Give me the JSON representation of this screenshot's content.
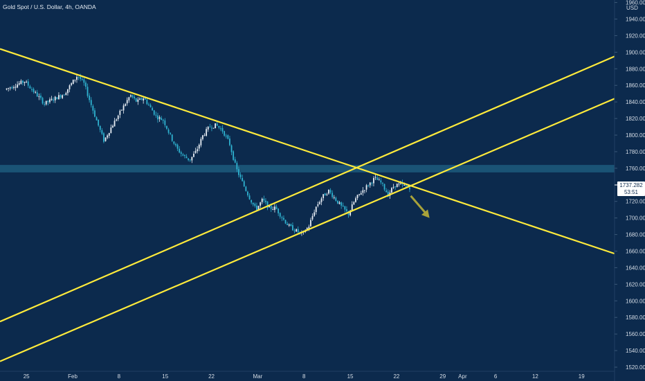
{
  "header": {
    "title": "Gold Spot / U.S. Dollar, 4h, OANDA",
    "currency": "USD"
  },
  "price_label": {
    "price": "1737.282",
    "countdown": "53:51"
  },
  "colors": {
    "background": "#0c2a4d",
    "trendline": "#ffeb3b",
    "zone": "#1d5a7c",
    "candle_up": "#e8eef5",
    "candle_down": "#2fb3d1",
    "arrow": "#a8a23a",
    "axis_text": "#d6dde6",
    "price_label_bg": "#ffffff",
    "price_label_text": "#0c2a4d"
  },
  "chart_data": {
    "type": "candlestick",
    "symbol": "Gold Spot / U.S. Dollar",
    "timeframe": "4h",
    "broker": "OANDA",
    "ylim": [
      1515,
      1963
    ],
    "x_ticks": [
      "25",
      "Feb",
      "8",
      "15",
      "22",
      "Mar",
      "8",
      "15",
      "22",
      "29",
      "Apr",
      "6",
      "12",
      "19"
    ],
    "y_ticks": [
      "1960.000",
      "1940.000",
      "1920.000",
      "1900.000",
      "1880.000",
      "1860.000",
      "1840.000",
      "1820.000",
      "1800.000",
      "1780.000",
      "1760.000",
      "1740.000",
      "1720.000",
      "1700.000",
      "1680.000",
      "1660.000",
      "1640.000",
      "1620.000",
      "1600.000",
      "1580.000",
      "1560.000",
      "1540.000",
      "1520.000"
    ],
    "price_path": [
      {
        "date": "Jan 22",
        "price": 1855
      },
      {
        "date": "Jan 25",
        "price": 1865
      },
      {
        "date": "Jan 28",
        "price": 1838
      },
      {
        "date": "Jan 31",
        "price": 1850
      },
      {
        "date": "Feb 2",
        "price": 1872
      },
      {
        "date": "Feb 3",
        "price": 1862
      },
      {
        "date": "Feb 4",
        "price": 1838
      },
      {
        "date": "Feb 5",
        "price": 1815
      },
      {
        "date": "Feb 6",
        "price": 1793
      },
      {
        "date": "Feb 7",
        "price": 1808
      },
      {
        "date": "Feb 9",
        "price": 1835
      },
      {
        "date": "Feb 10",
        "price": 1848
      },
      {
        "date": "Feb 11",
        "price": 1840
      },
      {
        "date": "Feb 12",
        "price": 1845
      },
      {
        "date": "Feb 14",
        "price": 1822
      },
      {
        "date": "Feb 15",
        "price": 1818
      },
      {
        "date": "Feb 16",
        "price": 1800
      },
      {
        "date": "Feb 17",
        "price": 1784
      },
      {
        "date": "Feb 18",
        "price": 1775
      },
      {
        "date": "Feb 19",
        "price": 1770
      },
      {
        "date": "Feb 20",
        "price": 1781
      },
      {
        "date": "Feb 21",
        "price": 1800
      },
      {
        "date": "Feb 22",
        "price": 1810
      },
      {
        "date": "Feb 23",
        "price": 1812
      },
      {
        "date": "Feb 24",
        "price": 1805
      },
      {
        "date": "Feb 25",
        "price": 1790
      },
      {
        "date": "Feb 26",
        "price": 1760
      },
      {
        "date": "Feb 27",
        "price": 1742
      },
      {
        "date": "Feb 28",
        "price": 1725
      },
      {
        "date": "Mar 1",
        "price": 1710
      },
      {
        "date": "Mar 2",
        "price": 1722
      },
      {
        "date": "Mar 3",
        "price": 1712
      },
      {
        "date": "Mar 4",
        "price": 1712
      },
      {
        "date": "Mar 5",
        "price": 1700
      },
      {
        "date": "Mar 6",
        "price": 1690
      },
      {
        "date": "Mar 7",
        "price": 1685
      },
      {
        "date": "Mar 8",
        "price": 1680
      },
      {
        "date": "Mar 9",
        "price": 1690
      },
      {
        "date": "Mar 10",
        "price": 1712
      },
      {
        "date": "Mar 11",
        "price": 1725
      },
      {
        "date": "Mar 12",
        "price": 1733
      },
      {
        "date": "Mar 14",
        "price": 1713
      },
      {
        "date": "Mar 15",
        "price": 1705
      },
      {
        "date": "Mar 16",
        "price": 1722
      },
      {
        "date": "Mar 17",
        "price": 1732
      },
      {
        "date": "Mar 18",
        "price": 1740
      },
      {
        "date": "Mar 19",
        "price": 1748
      },
      {
        "date": "Mar 20",
        "price": 1742
      },
      {
        "date": "Mar 21",
        "price": 1728
      },
      {
        "date": "Mar 22",
        "price": 1740
      },
      {
        "date": "Mar 23",
        "price": 1740
      },
      {
        "date": "Mar 24",
        "price": 1737
      }
    ],
    "horizontal_zone": [
      1755,
      1764
    ],
    "annotations": [
      {
        "type": "trendline",
        "name": "descending-resistance",
        "p1": {
          "date": "Jan 21",
          "price": 1904
        },
        "p2": {
          "date": "Apr 24",
          "price": 1657
        }
      },
      {
        "type": "trendline",
        "name": "ascending-channel-upper",
        "p1": {
          "date": "Jan 21",
          "price": 1575
        },
        "p2": {
          "date": "Apr 24",
          "price": 1895
        }
      },
      {
        "type": "trendline",
        "name": "ascending-channel-lower",
        "p1": {
          "date": "Jan 21",
          "price": 1527
        },
        "p2": {
          "date": "Apr 24",
          "price": 1844
        }
      },
      {
        "type": "arrow",
        "name": "bearish-projection",
        "from": {
          "date": "Mar 25",
          "price": 1730
        },
        "to": {
          "date": "Mar 27",
          "price": 1700
        }
      }
    ]
  }
}
